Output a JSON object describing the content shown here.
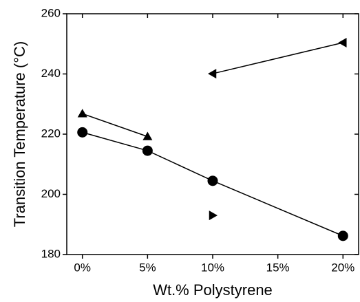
{
  "chart_data": {
    "type": "line",
    "xlabel": "Wt.% Polystyrene",
    "ylabel": "Transition Temperature (°C)",
    "xlim": [
      -1.2,
      21.2
    ],
    "ylim": [
      180,
      260
    ],
    "xticks": [
      {
        "value": 0,
        "label": "0%"
      },
      {
        "value": 5,
        "label": "5%"
      },
      {
        "value": 10,
        "label": "10%"
      },
      {
        "value": 15,
        "label": "15%"
      },
      {
        "value": 20,
        "label": "20%"
      }
    ],
    "yticks": [
      180,
      200,
      220,
      240,
      260
    ],
    "series": [
      {
        "color": "#000000",
        "marker": "circle",
        "x": [
          0,
          5,
          10,
          20
        ],
        "values": [
          220.6,
          214.5,
          204.5,
          186.2
        ]
      },
      {
        "color": "#000000",
        "marker": "triangle-up",
        "x": [
          0,
          5
        ],
        "values": [
          226.8,
          219.2
        ]
      },
      {
        "color": "#000000",
        "marker": "triangle-left",
        "x": [
          10,
          20
        ],
        "values": [
          240.1,
          250.4
        ]
      },
      {
        "color": "#000000",
        "marker": "triangle-right",
        "x": [
          10
        ],
        "values": [
          193.0
        ]
      }
    ]
  }
}
